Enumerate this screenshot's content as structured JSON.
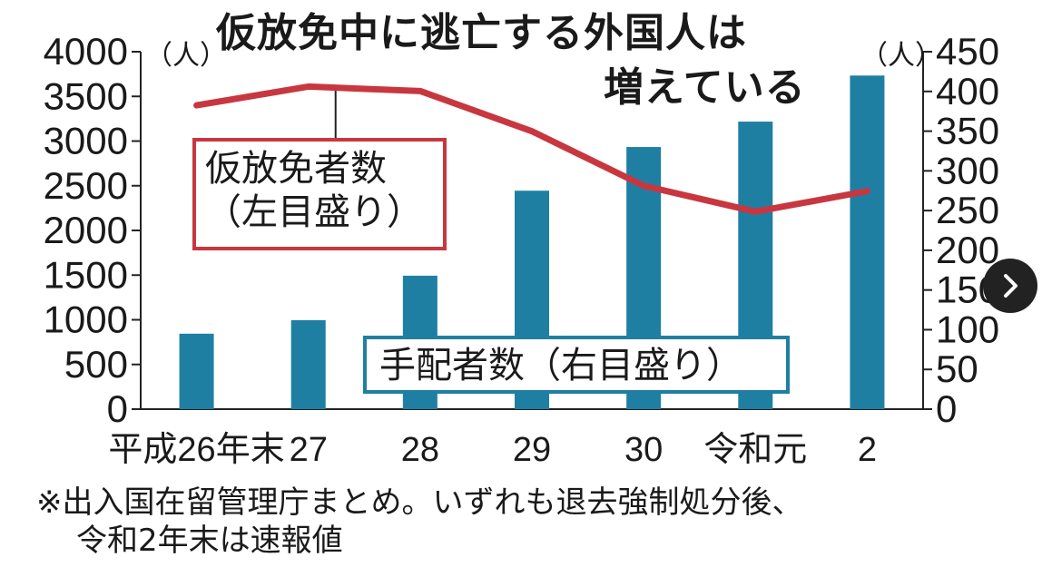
{
  "chart_data": {
    "type": "bar+line",
    "title_line1": "仮放免中に逃亡する外国人は",
    "title_line2": "増えている",
    "categories": [
      "平成26年末",
      "27",
      "28",
      "29",
      "30",
      "令和元",
      "2"
    ],
    "bar_series": {
      "name": "手配者数（右目盛り）",
      "axis": "right",
      "color": "#1f7fa3",
      "values": [
        95,
        112,
        168,
        275,
        330,
        362,
        420
      ]
    },
    "line_series": {
      "name_line1": "仮放免者数",
      "name_line2": "（左目盛り）",
      "axis": "left",
      "color": "#c8373f",
      "values": [
        3400,
        3610,
        3560,
        3110,
        2500,
        2210,
        2440
      ]
    },
    "left_axis": {
      "unit": "（人）",
      "ylim": [
        0,
        4000
      ],
      "ticks": [
        "0",
        "500",
        "1000",
        "1500",
        "2000",
        "2500",
        "3000",
        "3500",
        "4000"
      ]
    },
    "right_axis": {
      "unit": "（人）",
      "ylim": [
        0,
        450
      ],
      "ticks": [
        "0",
        "50",
        "100",
        "150",
        "200",
        "250",
        "300",
        "350",
        "400",
        "450"
      ]
    },
    "grid": false,
    "legend_placement": "inline"
  },
  "note_line1": "※出入国在留管理庁まとめ。いずれも退去強制処分後、",
  "note_line2": "令和2年末は速報値",
  "nav": {
    "icon": "chevron-right-icon"
  }
}
